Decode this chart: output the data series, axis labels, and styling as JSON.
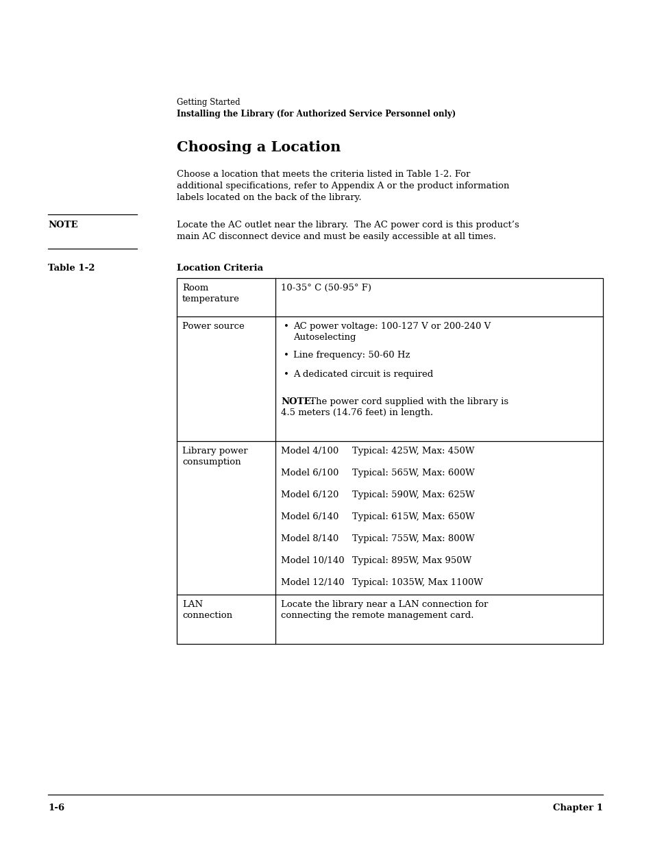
{
  "page_bg": "#ffffff",
  "header_line1": "Getting Started",
  "header_line2": "Installing the Library (for Authorized Service Personnel only)",
  "section_title": "Choosing a Location",
  "body_text_line1": "Choose a location that meets the criteria listed in Table 1-2. For",
  "body_text_line2": "additional specifications, refer to Appendix A or the product information",
  "body_text_line3": "labels located on the back of the library.",
  "note_label": "NOTE",
  "note_text_line1": "Locate the AC outlet near the library.  The AC power cord is this product’s",
  "note_text_line2": "main AC disconnect device and must be easily accessible at all times.",
  "table_label": "Table 1-2",
  "table_title": "Location Criteria",
  "row0_col1": "Room\ntemperature",
  "row0_col2": "10-35° C (50-95° F)",
  "row1_col1": "Power source",
  "row1_bullet1a": "AC power voltage: 100-127 V or 200-240 V",
  "row1_bullet1b": "Autoselecting",
  "row1_bullet2": "Line frequency: 50-60 Hz",
  "row1_bullet3": "A dedicated circuit is required",
  "row1_note_bold": "NOTE:",
  "row1_note_rest": " The power cord supplied with the library is",
  "row1_note_line2": "4.5 meters (14.76 feet) in length.",
  "row2_col1": "Library power\nconsumption",
  "row2_models": [
    [
      "Model 4/100",
      "Typical: 425W, Max: 450W"
    ],
    [
      "Model 6/100",
      "Typical: 565W, Max: 600W"
    ],
    [
      "Model 6/120",
      "Typical: 590W, Max: 625W"
    ],
    [
      "Model 6/140",
      "Typical: 615W, Max: 650W"
    ],
    [
      "Model 8/140",
      "Typical: 755W, Max: 800W"
    ],
    [
      "Model 10/140",
      "Typical: 895W, Max 950W"
    ],
    [
      "Model 12/140",
      "Typical: 1035W, Max 1100W"
    ]
  ],
  "row3_col1": "LAN\nconnection",
  "row3_col2_line1": "Locate the library near a LAN connection for",
  "row3_col2_line2": "connecting the remote management card.",
  "footer_left": "1-6",
  "footer_right": "Chapter 1"
}
